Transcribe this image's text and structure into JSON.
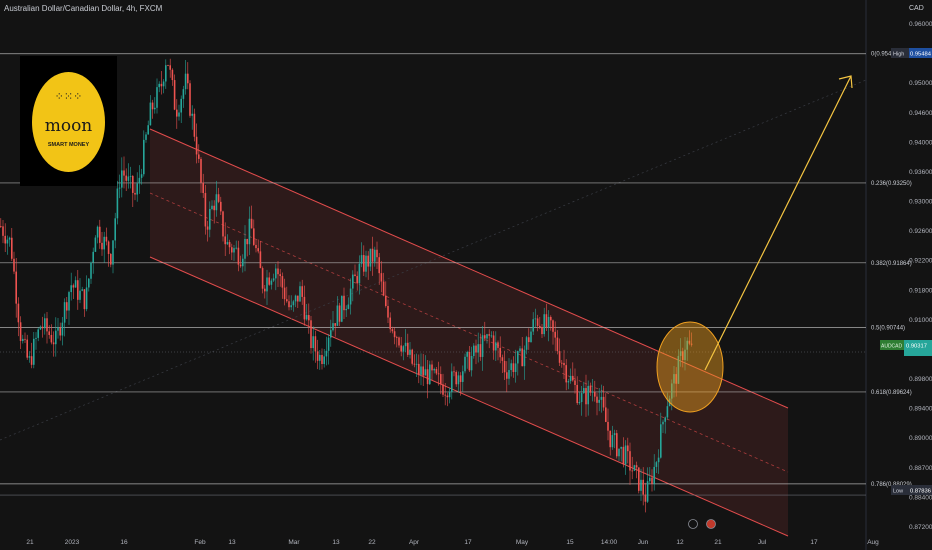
{
  "header": {
    "symbol_title": "Australian Dollar/Canadian Dollar, 4h, FXCM",
    "currency": "CAD"
  },
  "logo": {
    "dots": "⁘⁙⁘",
    "name": "moon",
    "tagline": "SMART MONEY"
  },
  "colors": {
    "up": "#26a69a",
    "down": "#ef5350",
    "channel": "#e24c4c",
    "arrow": "#f5c542",
    "bg": "#131313",
    "circle": "#f0a020"
  },
  "chart_data": {
    "type": "candlestick",
    "title": "Australian Dollar/Canadian Dollar, 4h, FXCM",
    "ylim": [
      0.8716,
      0.9618
    ],
    "y_ticks": [
      "0.96000",
      "0.95400",
      "0.95000",
      "0.94600",
      "0.94000",
      "0.93600",
      "0.93000",
      "0.92600",
      "0.92200",
      "0.91800",
      "0.91000",
      "0.90600",
      "0.89800",
      "0.89400",
      "0.89000",
      "0.88700",
      "0.88400",
      "0.87200"
    ],
    "x_ticks": [
      "21",
      "2023",
      "16",
      "Feb",
      "13",
      "Mar",
      "13",
      "22",
      "Apr",
      "17",
      "May",
      "15",
      "14:00",
      "Jun",
      "12",
      "21",
      "Jul",
      "17",
      "Aug"
    ],
    "fibonacci": [
      {
        "label": "0(0.95491)",
        "value": 0.95491
      },
      {
        "label": "0.236(0.93250)",
        "value": 0.9325
      },
      {
        "label": "0.382(0.91864)",
        "value": 0.91864
      },
      {
        "label": "0.5(0.90744)",
        "value": 0.90744
      },
      {
        "label": "0.618(0.89624)",
        "value": 0.89624
      },
      {
        "label": "0.786(0.88029)",
        "value": 0.88029
      }
    ],
    "markers": [
      {
        "label": "High",
        "value_text": "0.95484",
        "value": 0.95484
      },
      {
        "label": "Low",
        "value_text": "0.87836",
        "value": 0.87836
      },
      {
        "label": "AUDCAD",
        "value_text": "0.90317",
        "value": 0.90317
      }
    ],
    "price_path": [
      [
        0,
        0.925
      ],
      [
        10,
        0.922
      ],
      [
        20,
        0.906
      ],
      [
        28,
        0.901
      ],
      [
        40,
        0.908
      ],
      [
        55,
        0.905
      ],
      [
        70,
        0.915
      ],
      [
        85,
        0.912
      ],
      [
        95,
        0.925
      ],
      [
        110,
        0.92
      ],
      [
        120,
        0.935
      ],
      [
        135,
        0.93
      ],
      [
        150,
        0.945
      ],
      [
        160,
        0.949
      ],
      [
        166,
        0.9549
      ],
      [
        175,
        0.945
      ],
      [
        185,
        0.95
      ],
      [
        195,
        0.94
      ],
      [
        205,
        0.925
      ],
      [
        215,
        0.93
      ],
      [
        225,
        0.922
      ],
      [
        240,
        0.92
      ],
      [
        250,
        0.925
      ],
      [
        262,
        0.915
      ],
      [
        275,
        0.918
      ],
      [
        290,
        0.91
      ],
      [
        300,
        0.914
      ],
      [
        310,
        0.905
      ],
      [
        320,
        0.902
      ],
      [
        330,
        0.908
      ],
      [
        345,
        0.912
      ],
      [
        360,
        0.918
      ],
      [
        375,
        0.92
      ],
      [
        385,
        0.91
      ],
      [
        400,
        0.905
      ],
      [
        415,
        0.9
      ],
      [
        430,
        0.899
      ],
      [
        445,
        0.897
      ],
      [
        460,
        0.9
      ],
      [
        475,
        0.903
      ],
      [
        490,
        0.906
      ],
      [
        505,
        0.9
      ],
      [
        520,
        0.902
      ],
      [
        535,
        0.909
      ],
      [
        550,
        0.907
      ],
      [
        565,
        0.9
      ],
      [
        580,
        0.895
      ],
      [
        595,
        0.897
      ],
      [
        610,
        0.888
      ],
      [
        625,
        0.885
      ],
      [
        640,
        0.88
      ],
      [
        645,
        0.878
      ],
      [
        655,
        0.884
      ],
      [
        665,
        0.894
      ],
      [
        675,
        0.899
      ],
      [
        685,
        0.905
      ],
      [
        692,
        0.903
      ]
    ]
  }
}
